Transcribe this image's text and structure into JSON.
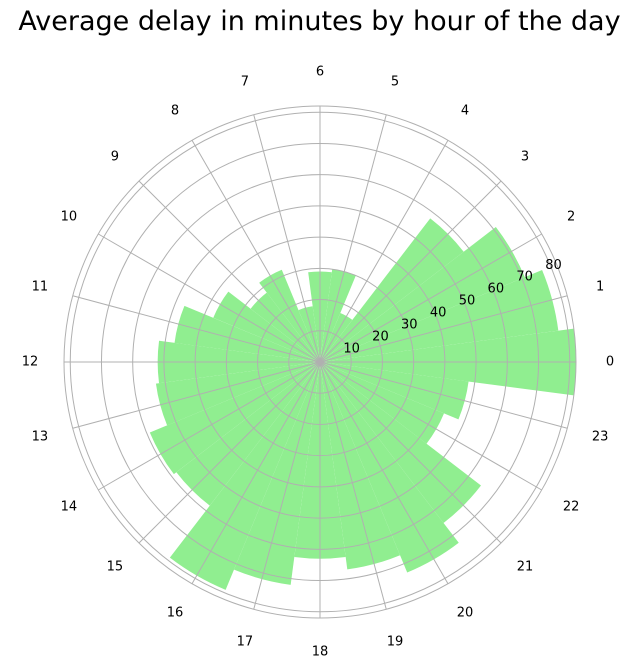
{
  "chart_data": {
    "type": "bar",
    "projection": "polar",
    "title": "Average delay in minutes by hour of the day",
    "categories": [
      "0",
      "1",
      "2",
      "3",
      "4",
      "5",
      "6",
      "7",
      "8",
      "9",
      "10",
      "11",
      "12",
      "13",
      "14",
      "15",
      "16",
      "17",
      "18",
      "19",
      "20",
      "21",
      "22",
      "23"
    ],
    "series": [
      {
        "values": [
          82,
          77,
          71,
          58,
          17,
          30,
          29,
          18,
          32,
          28,
          37,
          47,
          52,
          53,
          59,
          58,
          79,
          72,
          63,
          67,
          73,
          65,
          43,
          48
        ]
      }
    ],
    "angle_labels": [
      "0",
      "1",
      "2",
      "3",
      "4",
      "5",
      "6",
      "7",
      "8",
      "9",
      "10",
      "11",
      "12",
      "13",
      "14",
      "15",
      "16",
      "17",
      "18",
      "19",
      "20",
      "21",
      "22",
      "23"
    ],
    "radial_ticks": [
      10,
      20,
      30,
      40,
      50,
      60,
      70,
      80
    ],
    "radial_tick_labels": [
      "10",
      "20",
      "30",
      "40",
      "50",
      "60",
      "70",
      "80"
    ],
    "r_max": 82,
    "grid": true,
    "color": "#90EE90",
    "grid_color": "#b0b0b0"
  }
}
